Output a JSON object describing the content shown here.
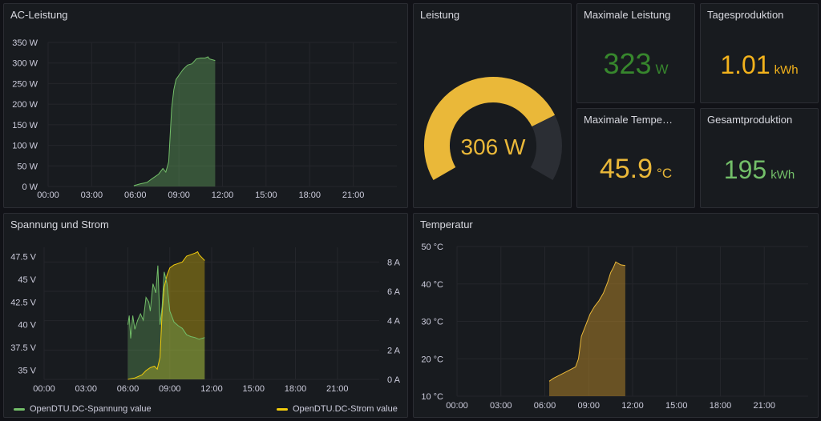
{
  "colors": {
    "green": "#73bf69",
    "yellow": "#f2cc0c",
    "gauge_yellow": "#eab839",
    "orange_yellow": "#f2b21c",
    "grid": "#24262b"
  },
  "ac_panel": {
    "title": "AC-Leistung",
    "y_ticks": [
      "350 W",
      "300 W",
      "250 W",
      "200 W",
      "150 W",
      "100 W",
      "50 W",
      "0 W"
    ],
    "x_ticks": [
      "00:00",
      "03:00",
      "06:00",
      "09:00",
      "12:00",
      "15:00",
      "18:00",
      "21:00"
    ]
  },
  "gauge_panel": {
    "title": "Leistung",
    "value_text": "306 W",
    "value": 306,
    "min": 0,
    "max": 400
  },
  "stats": {
    "max_power": {
      "title": "Maximale Leistung",
      "value": "323",
      "unit": "W"
    },
    "daily": {
      "title": "Tagesproduktion",
      "value": "1.01",
      "unit": "kWh"
    },
    "max_temp": {
      "title": "Maximale Tempe…",
      "value": "45.9",
      "unit": "°C"
    },
    "total": {
      "title": "Gesamtproduktion",
      "value": "195",
      "unit": "kWh"
    }
  },
  "vi_panel": {
    "title": "Spannung und Strom",
    "y_left_ticks": [
      "47.5 V",
      "45 V",
      "42.5 V",
      "40 V",
      "37.5 V",
      "35 V"
    ],
    "y_right_ticks": [
      "8 A",
      "6 A",
      "4 A",
      "2 A",
      "0 A"
    ],
    "x_ticks": [
      "00:00",
      "03:00",
      "06:00",
      "09:00",
      "12:00",
      "15:00",
      "18:00",
      "21:00"
    ],
    "legend": [
      "OpenDTU.DC-Spannung value",
      "OpenDTU.DC-Strom value"
    ]
  },
  "temp_panel": {
    "title": "Temperatur",
    "y_ticks": [
      "50 °C",
      "40 °C",
      "30 °C",
      "20 °C",
      "10 °C"
    ],
    "x_ticks": [
      "00:00",
      "03:00",
      "06:00",
      "09:00",
      "12:00",
      "15:00",
      "18:00",
      "21:00"
    ]
  },
  "chart_data": [
    {
      "type": "area",
      "title": "AC-Leistung",
      "ylabel": "W",
      "ylim": [
        0,
        350
      ],
      "x_range": [
        "00:00",
        "24:00"
      ],
      "series": [
        {
          "name": "AC-Leistung",
          "x_hours": [
            5.9,
            6.3,
            6.8,
            7.2,
            7.6,
            7.9,
            8.1,
            8.3,
            8.5,
            8.65,
            8.8,
            9.0,
            9.3,
            9.6,
            9.9,
            10.2,
            10.5,
            10.8,
            11.0,
            11.1,
            11.3,
            11.5
          ],
          "values": [
            2,
            6,
            10,
            20,
            30,
            44,
            35,
            60,
            190,
            235,
            260,
            270,
            285,
            295,
            298,
            310,
            312,
            312,
            315,
            310,
            308,
            306
          ]
        }
      ]
    },
    {
      "type": "line",
      "title": "Spannung und Strom",
      "x_range": [
        "00:00",
        "24:00"
      ],
      "series": [
        {
          "name": "OpenDTU.DC-Spannung value",
          "unit": "V",
          "ylim": [
            34,
            48.5
          ],
          "x_hours": [
            6.0,
            6.1,
            6.2,
            6.35,
            6.5,
            6.7,
            6.9,
            7.1,
            7.3,
            7.5,
            7.6,
            7.8,
            8.0,
            8.15,
            8.3,
            8.45,
            8.6,
            8.8,
            9.0,
            9.3,
            9.6,
            9.9,
            10.2,
            10.5,
            10.8,
            11.1,
            11.3,
            11.5
          ],
          "values": [
            40,
            41,
            38.5,
            41,
            39.5,
            40.5,
            41.2,
            40.5,
            43,
            42.5,
            41.5,
            44.5,
            43.5,
            46.5,
            40,
            42,
            45.8,
            44.5,
            41.5,
            40.3,
            39.9,
            39.6,
            38.9,
            38.7,
            38.6,
            38.4,
            38.5,
            38.6
          ]
        },
        {
          "name": "OpenDTU.DC-Strom value",
          "unit": "A",
          "ylim": [
            0,
            9
          ],
          "x_hours": [
            6.0,
            6.5,
            7.0,
            7.3,
            7.6,
            7.9,
            8.1,
            8.3,
            8.45,
            8.6,
            8.8,
            9.0,
            9.3,
            9.6,
            9.9,
            10.2,
            10.5,
            10.8,
            11.0,
            11.1,
            11.3,
            11.5
          ],
          "values": [
            0,
            0.1,
            0.3,
            0.6,
            0.8,
            0.9,
            0.7,
            1.5,
            4.6,
            6.3,
            7.1,
            7.6,
            7.8,
            7.9,
            8.0,
            8.4,
            8.5,
            8.6,
            8.7,
            8.5,
            8.3,
            8.1
          ]
        }
      ]
    },
    {
      "type": "area",
      "title": "Temperatur",
      "ylabel": "°C",
      "ylim": [
        10,
        50
      ],
      "x_range": [
        "00:00",
        "24:00"
      ],
      "series": [
        {
          "name": "Temperatur",
          "x_hours": [
            6.3,
            6.6,
            7.0,
            7.4,
            7.8,
            8.1,
            8.3,
            8.5,
            8.8,
            9.1,
            9.4,
            9.7,
            10.0,
            10.3,
            10.5,
            10.7,
            10.85,
            11.0,
            11.2,
            11.5
          ],
          "values": [
            14.0,
            14.8,
            15.6,
            16.4,
            17.2,
            17.8,
            20.0,
            26.0,
            29.0,
            32.0,
            34.0,
            35.5,
            37.5,
            40.5,
            43.0,
            44.5,
            45.9,
            45.5,
            45.1,
            44.9
          ]
        }
      ]
    }
  ]
}
